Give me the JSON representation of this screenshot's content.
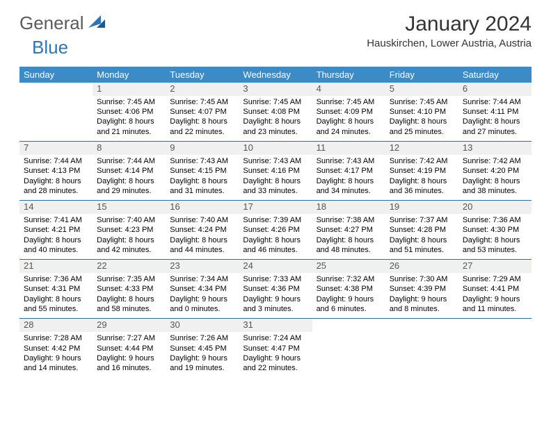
{
  "logo": {
    "general": "General",
    "blue": "Blue"
  },
  "title": "January 2024",
  "location": "Hauskirchen, Lower Austria, Austria",
  "colors": {
    "header_bg": "#3b8bc9",
    "header_text": "#ffffff",
    "row_divider": "#2e6da4",
    "daynum_bg": "#f0f0f0",
    "daynum_text": "#555555",
    "logo_gray": "#5b5b5b",
    "logo_blue": "#2e75b6",
    "text": "#000000",
    "bg": "#ffffff"
  },
  "weekdays": [
    "Sunday",
    "Monday",
    "Tuesday",
    "Wednesday",
    "Thursday",
    "Friday",
    "Saturday"
  ],
  "weeks": [
    [
      null,
      {
        "n": "1",
        "sunrise": "Sunrise: 7:45 AM",
        "sunset": "Sunset: 4:06 PM",
        "dl1": "Daylight: 8 hours",
        "dl2": "and 21 minutes."
      },
      {
        "n": "2",
        "sunrise": "Sunrise: 7:45 AM",
        "sunset": "Sunset: 4:07 PM",
        "dl1": "Daylight: 8 hours",
        "dl2": "and 22 minutes."
      },
      {
        "n": "3",
        "sunrise": "Sunrise: 7:45 AM",
        "sunset": "Sunset: 4:08 PM",
        "dl1": "Daylight: 8 hours",
        "dl2": "and 23 minutes."
      },
      {
        "n": "4",
        "sunrise": "Sunrise: 7:45 AM",
        "sunset": "Sunset: 4:09 PM",
        "dl1": "Daylight: 8 hours",
        "dl2": "and 24 minutes."
      },
      {
        "n": "5",
        "sunrise": "Sunrise: 7:45 AM",
        "sunset": "Sunset: 4:10 PM",
        "dl1": "Daylight: 8 hours",
        "dl2": "and 25 minutes."
      },
      {
        "n": "6",
        "sunrise": "Sunrise: 7:44 AM",
        "sunset": "Sunset: 4:11 PM",
        "dl1": "Daylight: 8 hours",
        "dl2": "and 27 minutes."
      }
    ],
    [
      {
        "n": "7",
        "sunrise": "Sunrise: 7:44 AM",
        "sunset": "Sunset: 4:13 PM",
        "dl1": "Daylight: 8 hours",
        "dl2": "and 28 minutes."
      },
      {
        "n": "8",
        "sunrise": "Sunrise: 7:44 AM",
        "sunset": "Sunset: 4:14 PM",
        "dl1": "Daylight: 8 hours",
        "dl2": "and 29 minutes."
      },
      {
        "n": "9",
        "sunrise": "Sunrise: 7:43 AM",
        "sunset": "Sunset: 4:15 PM",
        "dl1": "Daylight: 8 hours",
        "dl2": "and 31 minutes."
      },
      {
        "n": "10",
        "sunrise": "Sunrise: 7:43 AM",
        "sunset": "Sunset: 4:16 PM",
        "dl1": "Daylight: 8 hours",
        "dl2": "and 33 minutes."
      },
      {
        "n": "11",
        "sunrise": "Sunrise: 7:43 AM",
        "sunset": "Sunset: 4:17 PM",
        "dl1": "Daylight: 8 hours",
        "dl2": "and 34 minutes."
      },
      {
        "n": "12",
        "sunrise": "Sunrise: 7:42 AM",
        "sunset": "Sunset: 4:19 PM",
        "dl1": "Daylight: 8 hours",
        "dl2": "and 36 minutes."
      },
      {
        "n": "13",
        "sunrise": "Sunrise: 7:42 AM",
        "sunset": "Sunset: 4:20 PM",
        "dl1": "Daylight: 8 hours",
        "dl2": "and 38 minutes."
      }
    ],
    [
      {
        "n": "14",
        "sunrise": "Sunrise: 7:41 AM",
        "sunset": "Sunset: 4:21 PM",
        "dl1": "Daylight: 8 hours",
        "dl2": "and 40 minutes."
      },
      {
        "n": "15",
        "sunrise": "Sunrise: 7:40 AM",
        "sunset": "Sunset: 4:23 PM",
        "dl1": "Daylight: 8 hours",
        "dl2": "and 42 minutes."
      },
      {
        "n": "16",
        "sunrise": "Sunrise: 7:40 AM",
        "sunset": "Sunset: 4:24 PM",
        "dl1": "Daylight: 8 hours",
        "dl2": "and 44 minutes."
      },
      {
        "n": "17",
        "sunrise": "Sunrise: 7:39 AM",
        "sunset": "Sunset: 4:26 PM",
        "dl1": "Daylight: 8 hours",
        "dl2": "and 46 minutes."
      },
      {
        "n": "18",
        "sunrise": "Sunrise: 7:38 AM",
        "sunset": "Sunset: 4:27 PM",
        "dl1": "Daylight: 8 hours",
        "dl2": "and 48 minutes."
      },
      {
        "n": "19",
        "sunrise": "Sunrise: 7:37 AM",
        "sunset": "Sunset: 4:28 PM",
        "dl1": "Daylight: 8 hours",
        "dl2": "and 51 minutes."
      },
      {
        "n": "20",
        "sunrise": "Sunrise: 7:36 AM",
        "sunset": "Sunset: 4:30 PM",
        "dl1": "Daylight: 8 hours",
        "dl2": "and 53 minutes."
      }
    ],
    [
      {
        "n": "21",
        "sunrise": "Sunrise: 7:36 AM",
        "sunset": "Sunset: 4:31 PM",
        "dl1": "Daylight: 8 hours",
        "dl2": "and 55 minutes."
      },
      {
        "n": "22",
        "sunrise": "Sunrise: 7:35 AM",
        "sunset": "Sunset: 4:33 PM",
        "dl1": "Daylight: 8 hours",
        "dl2": "and 58 minutes."
      },
      {
        "n": "23",
        "sunrise": "Sunrise: 7:34 AM",
        "sunset": "Sunset: 4:34 PM",
        "dl1": "Daylight: 9 hours",
        "dl2": "and 0 minutes."
      },
      {
        "n": "24",
        "sunrise": "Sunrise: 7:33 AM",
        "sunset": "Sunset: 4:36 PM",
        "dl1": "Daylight: 9 hours",
        "dl2": "and 3 minutes."
      },
      {
        "n": "25",
        "sunrise": "Sunrise: 7:32 AM",
        "sunset": "Sunset: 4:38 PM",
        "dl1": "Daylight: 9 hours",
        "dl2": "and 6 minutes."
      },
      {
        "n": "26",
        "sunrise": "Sunrise: 7:30 AM",
        "sunset": "Sunset: 4:39 PM",
        "dl1": "Daylight: 9 hours",
        "dl2": "and 8 minutes."
      },
      {
        "n": "27",
        "sunrise": "Sunrise: 7:29 AM",
        "sunset": "Sunset: 4:41 PM",
        "dl1": "Daylight: 9 hours",
        "dl2": "and 11 minutes."
      }
    ],
    [
      {
        "n": "28",
        "sunrise": "Sunrise: 7:28 AM",
        "sunset": "Sunset: 4:42 PM",
        "dl1": "Daylight: 9 hours",
        "dl2": "and 14 minutes."
      },
      {
        "n": "29",
        "sunrise": "Sunrise: 7:27 AM",
        "sunset": "Sunset: 4:44 PM",
        "dl1": "Daylight: 9 hours",
        "dl2": "and 16 minutes."
      },
      {
        "n": "30",
        "sunrise": "Sunrise: 7:26 AM",
        "sunset": "Sunset: 4:45 PM",
        "dl1": "Daylight: 9 hours",
        "dl2": "and 19 minutes."
      },
      {
        "n": "31",
        "sunrise": "Sunrise: 7:24 AM",
        "sunset": "Sunset: 4:47 PM",
        "dl1": "Daylight: 9 hours",
        "dl2": "and 22 minutes."
      },
      null,
      null,
      null
    ]
  ]
}
